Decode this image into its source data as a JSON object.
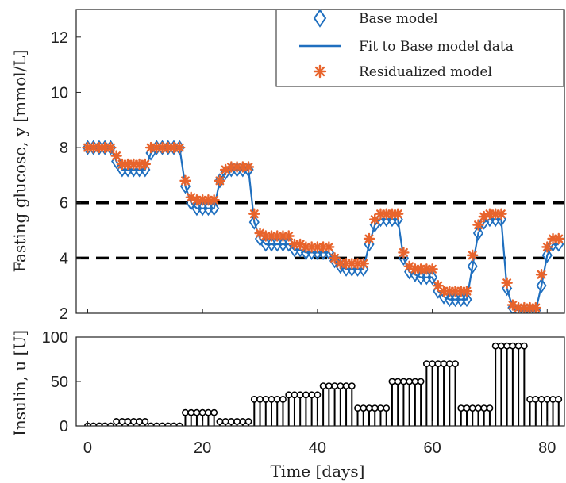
{
  "chart_data": [
    {
      "type": "line",
      "xlabel": "",
      "ylabel": "Fasting glucose, y [mmol/L]",
      "xlim": [
        -2,
        83
      ],
      "ylim": [
        2,
        13
      ],
      "xticks": [
        0,
        20,
        40,
        60,
        80
      ],
      "yticks": [
        2,
        4,
        6,
        8,
        10,
        12
      ],
      "grid": false,
      "legend_position": "top-right",
      "threshold_lines": [
        {
          "value": 6,
          "style": "dashed",
          "color": "#000000"
        },
        {
          "value": 4,
          "style": "dashed",
          "color": "#000000"
        }
      ],
      "x": [
        0,
        1,
        2,
        3,
        4,
        5,
        6,
        7,
        8,
        9,
        10,
        11,
        12,
        13,
        14,
        15,
        16,
        17,
        18,
        19,
        20,
        21,
        22,
        23,
        24,
        25,
        26,
        27,
        28,
        29,
        30,
        31,
        32,
        33,
        34,
        35,
        36,
        37,
        38,
        39,
        40,
        41,
        42,
        43,
        44,
        45,
        46,
        47,
        48,
        49,
        50,
        51,
        52,
        53,
        54,
        55,
        56,
        57,
        58,
        59,
        60,
        61,
        62,
        63,
        64,
        65,
        66,
        67,
        68,
        69,
        70,
        71,
        72,
        73,
        74,
        75,
        76,
        77,
        78,
        79,
        80,
        81,
        82
      ],
      "series": [
        {
          "name": "Base model",
          "marker": "diamond",
          "color": "#1f6fbf",
          "values": [
            8.0,
            8.0,
            8.0,
            8.0,
            8.0,
            7.5,
            7.2,
            7.2,
            7.2,
            7.2,
            7.2,
            7.8,
            8.0,
            8.0,
            8.0,
            8.0,
            8.0,
            6.6,
            6.0,
            5.8,
            5.8,
            5.8,
            5.8,
            6.8,
            7.1,
            7.2,
            7.2,
            7.2,
            7.2,
            5.3,
            4.7,
            4.5,
            4.5,
            4.5,
            4.5,
            4.5,
            4.3,
            4.3,
            4.2,
            4.2,
            4.2,
            4.2,
            4.2,
            3.9,
            3.7,
            3.6,
            3.6,
            3.6,
            3.6,
            4.5,
            5.2,
            5.4,
            5.4,
            5.4,
            5.4,
            4.0,
            3.5,
            3.4,
            3.3,
            3.3,
            3.3,
            2.8,
            2.6,
            2.5,
            2.5,
            2.5,
            2.5,
            3.7,
            4.9,
            5.3,
            5.4,
            5.4,
            5.4,
            2.9,
            2.2,
            2.1,
            2.1,
            2.1,
            2.1,
            3.0,
            4.1,
            4.5,
            4.5
          ]
        },
        {
          "name": "Fit to Base model data",
          "marker": "line",
          "color": "#1f6fbf",
          "values": [
            8.0,
            8.0,
            8.0,
            8.0,
            8.0,
            7.5,
            7.2,
            7.2,
            7.2,
            7.2,
            7.2,
            7.8,
            8.0,
            8.0,
            8.0,
            8.0,
            8.0,
            6.6,
            6.0,
            5.8,
            5.8,
            5.8,
            5.8,
            6.8,
            7.1,
            7.2,
            7.2,
            7.2,
            7.2,
            5.3,
            4.7,
            4.5,
            4.5,
            4.5,
            4.5,
            4.5,
            4.3,
            4.3,
            4.2,
            4.2,
            4.2,
            4.2,
            4.2,
            3.9,
            3.7,
            3.6,
            3.6,
            3.6,
            3.6,
            4.5,
            5.2,
            5.4,
            5.4,
            5.4,
            5.4,
            4.0,
            3.5,
            3.4,
            3.3,
            3.3,
            3.3,
            2.8,
            2.6,
            2.5,
            2.5,
            2.5,
            2.5,
            3.7,
            4.9,
            5.3,
            5.4,
            5.4,
            5.4,
            2.9,
            2.2,
            2.1,
            2.1,
            2.1,
            2.1,
            3.0,
            4.1,
            4.5,
            4.5
          ]
        },
        {
          "name": "Residualized model",
          "marker": "asterisk",
          "color": "#e8642c",
          "values": [
            8.0,
            8.0,
            8.0,
            8.0,
            8.0,
            7.7,
            7.4,
            7.4,
            7.4,
            7.4,
            7.4,
            8.0,
            8.0,
            8.0,
            8.0,
            8.0,
            8.0,
            6.8,
            6.2,
            6.1,
            6.1,
            6.1,
            6.1,
            6.8,
            7.2,
            7.3,
            7.3,
            7.3,
            7.3,
            5.6,
            4.9,
            4.8,
            4.8,
            4.8,
            4.8,
            4.8,
            4.5,
            4.5,
            4.4,
            4.4,
            4.4,
            4.4,
            4.4,
            4.0,
            3.8,
            3.8,
            3.8,
            3.8,
            3.8,
            4.7,
            5.4,
            5.6,
            5.6,
            5.6,
            5.6,
            4.2,
            3.7,
            3.6,
            3.6,
            3.6,
            3.6,
            3.0,
            2.8,
            2.8,
            2.8,
            2.8,
            2.8,
            4.1,
            5.2,
            5.5,
            5.6,
            5.6,
            5.6,
            3.1,
            2.3,
            2.2,
            2.2,
            2.2,
            2.2,
            3.4,
            4.4,
            4.7,
            4.7
          ]
        }
      ]
    },
    {
      "type": "stem",
      "xlabel": "Time [days]",
      "ylabel": "Insulin, u [U]",
      "xlim": [
        -2,
        83
      ],
      "ylim": [
        0,
        100
      ],
      "xticks": [
        0,
        20,
        40,
        60,
        80
      ],
      "yticks": [
        0,
        50,
        100
      ],
      "grid": false,
      "color": "#000000",
      "x": [
        0,
        1,
        2,
        3,
        4,
        5,
        6,
        7,
        8,
        9,
        10,
        11,
        12,
        13,
        14,
        15,
        16,
        17,
        18,
        19,
        20,
        21,
        22,
        23,
        24,
        25,
        26,
        27,
        28,
        29,
        30,
        31,
        32,
        33,
        34,
        35,
        36,
        37,
        38,
        39,
        40,
        41,
        42,
        43,
        44,
        45,
        46,
        47,
        48,
        49,
        50,
        51,
        52,
        53,
        54,
        55,
        56,
        57,
        58,
        59,
        60,
        61,
        62,
        63,
        64,
        65,
        66,
        67,
        68,
        69,
        70,
        71,
        72,
        73,
        74,
        75,
        76,
        77,
        78,
        79,
        80,
        81,
        82
      ],
      "values": [
        0,
        0,
        0,
        0,
        0,
        5,
        5,
        5,
        5,
        5,
        5,
        0,
        0,
        0,
        0,
        0,
        0,
        15,
        15,
        15,
        15,
        15,
        15,
        5,
        5,
        5,
        5,
        5,
        5,
        30,
        30,
        30,
        30,
        30,
        30,
        35,
        35,
        35,
        35,
        35,
        35,
        45,
        45,
        45,
        45,
        45,
        45,
        20,
        20,
        20,
        20,
        20,
        20,
        50,
        50,
        50,
        50,
        50,
        50,
        70,
        70,
        70,
        70,
        70,
        70,
        20,
        20,
        20,
        20,
        20,
        20,
        90,
        90,
        90,
        90,
        90,
        90,
        30,
        30,
        30,
        30,
        30,
        30
      ]
    }
  ]
}
